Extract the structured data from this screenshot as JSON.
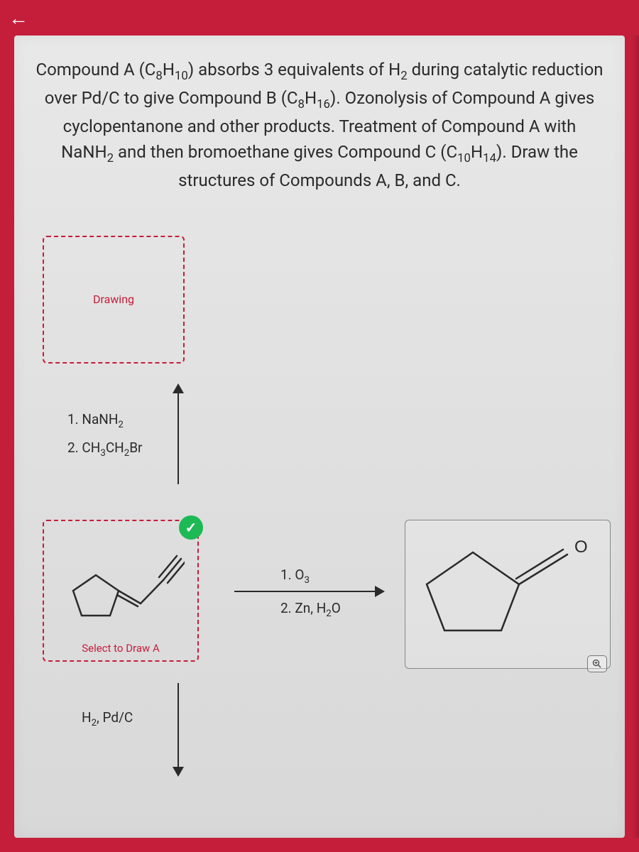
{
  "colors": {
    "primary_red": "#c41e3a",
    "text_dark": "#2a2a2a",
    "card_bg_top": "#e8e8e8",
    "card_bg_bottom": "#d8d8d8",
    "success_green": "#1db954",
    "border_gray": "#888888"
  },
  "question": {
    "text_html": "Compound A (C<sub>8</sub>H<sub>10</sub>) absorbs 3 equivalents of H<sub>2</sub> during catalytic reduction over Pd/C to give Compound B (C<sub>8</sub>H<sub>16</sub>). Ozonolysis of Compound A gives cyclopentanone and other products. Treatment of Compound A with NaNH<sub>2</sub> and then bromoethane gives Compound C (C<sub>10</sub>H<sub>14</sub>). Draw the structures of Compounds A, B, and C.",
    "font_size": 24
  },
  "boxes": {
    "top_drawing": {
      "label": "Drawing",
      "border_color": "#c41e3a",
      "border_style": "dashed"
    },
    "mid_drawing": {
      "label": "Select to Draw A",
      "border_color": "#c41e3a",
      "border_style": "dashed",
      "has_checkmark": true,
      "checkmark_color": "#1db954"
    },
    "product": {
      "border_color": "#888888",
      "has_zoom": true
    }
  },
  "reagents": {
    "step1": {
      "line1_html": "1. NaNH<sub>2</sub>",
      "line2_html": "2. CH<sub>3</sub>CH<sub>2</sub>Br"
    },
    "step2": {
      "line1_html": "1. O<sub>3</sub>",
      "line2_html": "2. Zn, H<sub>2</sub>O"
    },
    "step3": {
      "line1_html": "H<sub>2</sub>, Pd/C"
    }
  },
  "structures": {
    "compound_a": {
      "type": "molecule",
      "description": "cyclopentane with vinyl and alkyne substituent",
      "pentagon_stroke": "#2a2a2a",
      "stroke_width": 2.5
    },
    "cyclopentanone": {
      "type": "molecule",
      "description": "cyclopentanone",
      "pentagon_stroke": "#2a2a2a",
      "oxygen_label": "O",
      "stroke_width": 2.5
    }
  },
  "icons": {
    "back": "←",
    "check": "✓",
    "zoom": "⊕"
  }
}
